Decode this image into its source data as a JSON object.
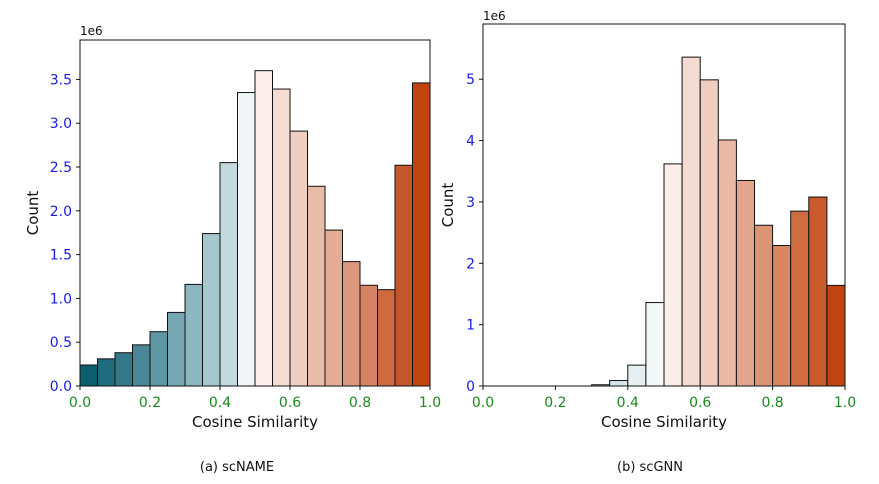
{
  "chart_data": [
    {
      "type": "bar",
      "subplot_caption": "(a) scNAME",
      "xlabel": "Cosine Similarity",
      "ylabel": "Count",
      "scale_label": "1e6",
      "xlim": [
        0.0,
        1.0
      ],
      "ylim": [
        0.0,
        3.95
      ],
      "grid": false,
      "bin_width": 0.05,
      "bins": [
        0.0,
        0.05,
        0.1,
        0.15,
        0.2,
        0.25,
        0.3,
        0.35,
        0.4,
        0.45,
        0.5,
        0.55,
        0.6,
        0.65,
        0.7,
        0.75,
        0.8,
        0.85,
        0.9,
        0.95
      ],
      "values": [
        0.24,
        0.31,
        0.38,
        0.47,
        0.62,
        0.84,
        1.16,
        1.74,
        2.55,
        3.35,
        3.6,
        3.39,
        2.91,
        2.28,
        1.78,
        1.42,
        1.15,
        1.1,
        2.52,
        3.46
      ],
      "colors": [
        "#0b5e6e",
        "#1f6d7c",
        "#34798a",
        "#4a8797",
        "#5f96a4",
        "#77a7b3",
        "#8db6c1",
        "#a7c7cf",
        "#c2d9de",
        "#f1f7f8",
        "#fdf0ec",
        "#f6ddd4",
        "#f0cfc3",
        "#e9bca9",
        "#e4ad96",
        "#dc997d",
        "#d68365",
        "#cd6a40",
        "#c5562b",
        "#c14410"
      ],
      "xticks": [
        {
          "value": 0.0,
          "label": "0.0"
        },
        {
          "value": 0.2,
          "label": "0.2"
        },
        {
          "value": 0.4,
          "label": "0.4"
        },
        {
          "value": 0.6,
          "label": "0.6"
        },
        {
          "value": 0.8,
          "label": "0.8"
        },
        {
          "value": 1.0,
          "label": "1.0"
        }
      ],
      "yticks": [
        {
          "value": 0.0,
          "label": "0.0"
        },
        {
          "value": 0.5,
          "label": "0.5"
        },
        {
          "value": 1.0,
          "label": "1.0"
        },
        {
          "value": 1.5,
          "label": "1.5"
        },
        {
          "value": 2.0,
          "label": "2.0"
        },
        {
          "value": 2.5,
          "label": "2.5"
        },
        {
          "value": 3.0,
          "label": "3.0"
        },
        {
          "value": 3.5,
          "label": "3.5"
        }
      ]
    },
    {
      "type": "bar",
      "subplot_caption": "(b) scGNN",
      "xlabel": "Cosine Similarity",
      "ylabel": "Count",
      "scale_label": "1e6",
      "xlim": [
        0.0,
        1.0
      ],
      "ylim": [
        0.0,
        5.9
      ],
      "grid": false,
      "bin_width": 0.05,
      "bins": [
        0.0,
        0.05,
        0.1,
        0.15,
        0.2,
        0.25,
        0.3,
        0.35,
        0.4,
        0.45,
        0.5,
        0.55,
        0.6,
        0.65,
        0.7,
        0.75,
        0.8,
        0.85,
        0.9,
        0.95
      ],
      "values": [
        0.0,
        0.0,
        0.0,
        0.0,
        0.0,
        0.0,
        0.02,
        0.09,
        0.34,
        1.36,
        3.62,
        5.36,
        4.99,
        4.01,
        3.35,
        2.62,
        2.29,
        2.85,
        3.08,
        1.64
      ],
      "colors": [
        "#ffffff",
        "#ffffff",
        "#ffffff",
        "#ffffff",
        "#ffffff",
        "#b9d3d9",
        "#c7dde2",
        "#d5e6ea",
        "#e6f0f2",
        "#f3f8f9",
        "#fbeee8",
        "#f5dcd2",
        "#f0cdbf",
        "#e9b9a5",
        "#e3a68c",
        "#db9474",
        "#d8875f",
        "#cf6d40",
        "#c85a2c",
        "#c14410"
      ],
      "xticks": [
        {
          "value": 0.0,
          "label": "0.0"
        },
        {
          "value": 0.2,
          "label": "0.2"
        },
        {
          "value": 0.4,
          "label": "0.4"
        },
        {
          "value": 0.6,
          "label": "0.6"
        },
        {
          "value": 0.8,
          "label": "0.8"
        },
        {
          "value": 1.0,
          "label": "1.0"
        }
      ],
      "yticks": [
        {
          "value": 0,
          "label": "0"
        },
        {
          "value": 1,
          "label": "1"
        },
        {
          "value": 2,
          "label": "2"
        },
        {
          "value": 3,
          "label": "3"
        },
        {
          "value": 4,
          "label": "4"
        },
        {
          "value": 5,
          "label": "5"
        }
      ]
    }
  ],
  "style": {
    "tick_label_x_color": "#1a8a1a",
    "tick_label_y_color": "#1a1aee",
    "edge_color": "#111111",
    "text_color": "#111111"
  }
}
